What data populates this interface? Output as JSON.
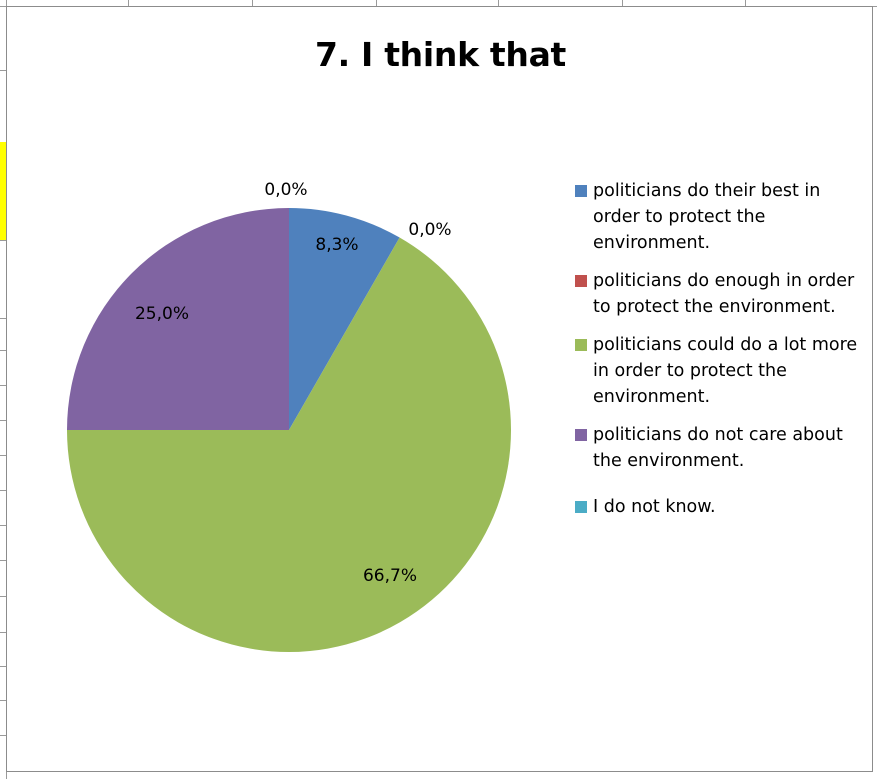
{
  "chart_data": {
    "type": "pie",
    "title": "7. I think that",
    "slices": [
      {
        "label": "politicians do their best in order to protect the environment.",
        "value": 8.3,
        "value_label": "8,3%",
        "color": "#4F81BD"
      },
      {
        "label": "politicians do enough in order to protect the environment.",
        "value": 0.0,
        "value_label": "0,0%",
        "color": "#C0504D"
      },
      {
        "label": "politicians could do a lot more in order to protect the environment.",
        "value": 66.7,
        "value_label": "66,7%",
        "color": "#9BBB59"
      },
      {
        "label": "politicians do not care about the environment.",
        "value": 25.0,
        "value_label": "25,0%",
        "color": "#8064A2"
      },
      {
        "label": "I do not know.",
        "value": 0.0,
        "value_label": "0,0%",
        "color": "#4BACC6"
      }
    ],
    "legend_position": "right",
    "start_angle_deg": 0,
    "direction": "clockwise"
  }
}
